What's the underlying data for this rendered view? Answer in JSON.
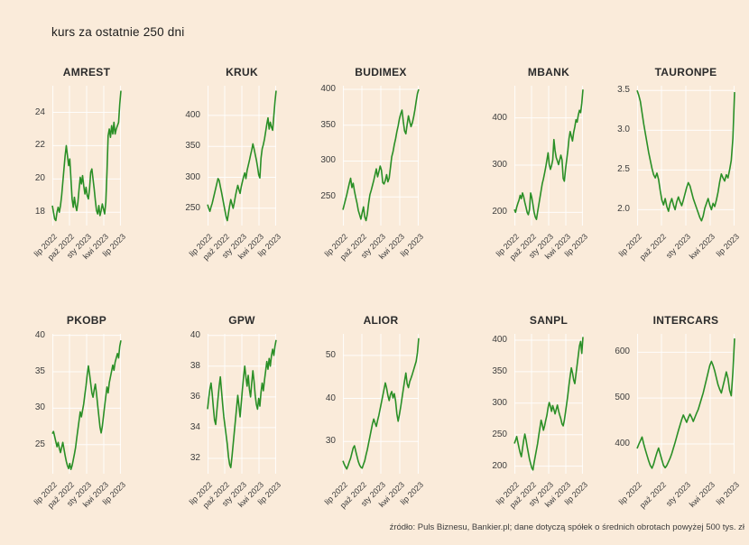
{
  "page": {
    "title": "kurs za ostatnie 250 dni",
    "source_note": "źródło: Puls Biznesu, Bankier.pl; dane dotyczą spółek o średnich obrotach powyżej 500 tys. zł",
    "colors": {
      "background": "#faebda",
      "line": "#2a8f26",
      "grid": "#ffffff"
    }
  },
  "chart_data": [
    {
      "type": "line",
      "title": "AMREST",
      "x_labels": [
        "lip 2022",
        "paź 2022",
        "sty 2023",
        "kwi 2023",
        "lip 2023"
      ],
      "ytick_labels": [
        "18",
        "20",
        "22",
        "24"
      ],
      "ytick_values": [
        18,
        20,
        22,
        24
      ],
      "ylim": [
        17.2,
        25.6
      ],
      "values": [
        18.4,
        18.0,
        17.6,
        17.5,
        18.0,
        18.3,
        18.0,
        18.4,
        19.0,
        19.8,
        20.6,
        21.4,
        22.0,
        21.4,
        20.8,
        21.2,
        20.0,
        18.8,
        18.3,
        18.9,
        18.4,
        18.1,
        18.6,
        19.4,
        20.1,
        19.7,
        20.2,
        19.6,
        19.1,
        19.5,
        19.0,
        18.8,
        19.4,
        20.4,
        20.6,
        20.0,
        19.4,
        18.7,
        18.1,
        17.9,
        18.4,
        17.8,
        18.1,
        18.5,
        18.2,
        17.9,
        18.6,
        20.4,
        22.6,
        23.0,
        22.5,
        23.2,
        22.7,
        23.4,
        22.7,
        23.0,
        23.2,
        23.4,
        24.5,
        25.3
      ]
    },
    {
      "type": "line",
      "title": "KRUK",
      "x_labels": [
        "lip 2022",
        "paź 2022",
        "sty 2023",
        "kwi 2023",
        "lip 2023"
      ],
      "ytick_labels": [
        "250",
        "300",
        "350",
        "400"
      ],
      "ytick_values": [
        250,
        300,
        350,
        400
      ],
      "ylim": [
        222,
        448
      ],
      "values": [
        256,
        250,
        245,
        252,
        258,
        266,
        274,
        282,
        290,
        298,
        295,
        285,
        276,
        266,
        256,
        246,
        236,
        230,
        242,
        254,
        264,
        257,
        250,
        259,
        270,
        279,
        287,
        280,
        274,
        285,
        293,
        301,
        307,
        298,
        311,
        319,
        327,
        336,
        344,
        354,
        346,
        337,
        328,
        317,
        304,
        299,
        331,
        346,
        353,
        362,
        374,
        386,
        396,
        378,
        389,
        381,
        376,
        399,
        422,
        440
      ]
    },
    {
      "type": "line",
      "title": "BUDIMEX",
      "x_labels": [
        "lip 2022",
        "paź 2022",
        "sty 2023",
        "kwi 2023",
        "lip 2023"
      ],
      "ytick_labels": [
        "250",
        "300",
        "350",
        "400"
      ],
      "ytick_values": [
        250,
        300,
        350,
        400
      ],
      "ylim": [
        210,
        405
      ],
      "values": [
        232,
        239,
        246,
        253,
        261,
        269,
        276,
        263,
        269,
        258,
        249,
        241,
        231,
        225,
        219,
        228,
        236,
        222,
        217,
        226,
        241,
        253,
        259,
        266,
        273,
        281,
        289,
        278,
        285,
        293,
        287,
        270,
        268,
        273,
        281,
        271,
        276,
        291,
        306,
        313,
        323,
        331,
        341,
        349,
        359,
        366,
        371,
        355,
        342,
        338,
        351,
        363,
        355,
        348,
        353,
        361,
        371,
        383,
        394,
        400
      ]
    },
    {
      "type": "line",
      "title": "MBANK",
      "x_labels": [
        "lip 2022",
        "paź 2022",
        "sty 2023",
        "kwi 2023",
        "lip 2023"
      ],
      "ytick_labels": [
        "200",
        "300",
        "400"
      ],
      "ytick_values": [
        200,
        300,
        400
      ],
      "ylim": [
        172,
        468
      ],
      "values": [
        206,
        200,
        211,
        219,
        226,
        236,
        229,
        241,
        233,
        221,
        211,
        200,
        195,
        206,
        241,
        231,
        216,
        200,
        190,
        185,
        201,
        216,
        231,
        246,
        261,
        271,
        283,
        296,
        311,
        326,
        301,
        291,
        299,
        311,
        354,
        331,
        316,
        309,
        301,
        311,
        321,
        311,
        272,
        266,
        291,
        311,
        331,
        356,
        371,
        361,
        351,
        369,
        381,
        396,
        391,
        406,
        416,
        411,
        431,
        460
      ]
    },
    {
      "type": "line",
      "title": "TAURONPE",
      "x_labels": [
        "lip 2022",
        "paź 2022",
        "sty 2023",
        "kwi 2023",
        "lip 2023"
      ],
      "ytick_labels": [
        "2.0",
        "2.5",
        "3.0",
        "3.5"
      ],
      "ytick_values": [
        2.0,
        2.5,
        3.0,
        3.5
      ],
      "ylim": [
        1.8,
        3.56
      ],
      "values": [
        3.5,
        3.44,
        3.36,
        3.22,
        3.08,
        2.96,
        2.84,
        2.72,
        2.62,
        2.52,
        2.44,
        2.4,
        2.46,
        2.38,
        2.24,
        2.12,
        2.06,
        2.14,
        2.04,
        1.98,
        2.08,
        2.14,
        2.06,
        2.0,
        2.1,
        2.16,
        2.1,
        2.05,
        2.12,
        2.2,
        2.28,
        2.34,
        2.3,
        2.22,
        2.14,
        2.08,
        2.02,
        1.96,
        1.9,
        1.86,
        1.92,
        2.02,
        2.08,
        2.14,
        2.06,
        2.0,
        2.08,
        2.04,
        2.12,
        2.22,
        2.35,
        2.45,
        2.4,
        2.36,
        2.44,
        2.4,
        2.5,
        2.62,
        2.9,
        3.48
      ]
    },
    {
      "type": "line",
      "title": "PKOBP",
      "x_labels": [
        "lip 2022",
        "paź 2022",
        "sty 2023",
        "kwi 2023",
        "lip 2023"
      ],
      "ytick_labels": [
        "25",
        "30",
        "35",
        "40"
      ],
      "ytick_values": [
        25,
        30,
        35,
        40
      ],
      "ylim": [
        21.0,
        40.2
      ],
      "values": [
        26.5,
        26.8,
        26.1,
        25.4,
        24.7,
        25.3,
        24.5,
        23.9,
        24.6,
        25.3,
        24.4,
        23.5,
        22.7,
        22.1,
        21.7,
        22.4,
        21.6,
        22.1,
        22.9,
        23.7,
        24.6,
        25.9,
        27.1,
        28.3,
        29.5,
        28.8,
        29.7,
        30.6,
        31.9,
        33.1,
        34.6,
        35.8,
        34.7,
        33.4,
        32.1,
        31.5,
        32.5,
        33.3,
        32.0,
        30.4,
        28.9,
        27.4,
        26.6,
        27.5,
        28.9,
        30.3,
        31.6,
        32.9,
        32.1,
        33.5,
        34.3,
        35.1,
        35.9,
        35.2,
        36.3,
        36.9,
        37.5,
        36.9,
        38.5,
        39.3
      ]
    },
    {
      "type": "line",
      "title": "GPW",
      "x_labels": [
        "lip 2022",
        "paź 2022",
        "sty 2023",
        "kwi 2023",
        "lip 2023"
      ],
      "ytick_labels": [
        "32",
        "34",
        "36",
        "38",
        "40"
      ],
      "ytick_values": [
        32,
        34,
        36,
        38,
        40
      ],
      "ylim": [
        31.0,
        40.1
      ],
      "values": [
        35.2,
        35.9,
        36.5,
        36.9,
        36.2,
        35.3,
        34.5,
        34.2,
        35.1,
        35.9,
        36.7,
        37.3,
        36.4,
        35.5,
        34.7,
        34.1,
        33.5,
        32.9,
        32.1,
        31.6,
        31.4,
        32.1,
        32.9,
        33.7,
        34.5,
        35.3,
        36.1,
        35.4,
        34.7,
        35.6,
        36.5,
        37.3,
        38.0,
        37.3,
        36.7,
        37.4,
        36.5,
        36.0,
        36.9,
        37.7,
        37.0,
        36.1,
        35.5,
        35.2,
        35.9,
        35.4,
        36.3,
        36.9,
        36.4,
        37.1,
        37.7,
        38.3,
        37.8,
        38.5,
        38.0,
        38.7,
        39.1,
        38.7,
        39.3,
        39.7
      ]
    },
    {
      "type": "line",
      "title": "ALIOR",
      "x_labels": [
        "lip 2022",
        "paź 2022",
        "sty 2023",
        "kwi 2023",
        "lip 2023"
      ],
      "ytick_labels": [
        "30",
        "40",
        "50"
      ],
      "ytick_values": [
        30,
        40,
        50
      ],
      "ylim": [
        22.5,
        55.0
      ],
      "values": [
        25.5,
        24.7,
        24.1,
        23.6,
        24.4,
        25.3,
        26.1,
        27.3,
        28.5,
        29.0,
        27.7,
        26.5,
        25.3,
        24.5,
        24.0,
        23.8,
        24.7,
        25.5,
        26.9,
        28.1,
        29.6,
        31.1,
        32.6,
        34.1,
        35.2,
        34.3,
        33.5,
        34.9,
        36.1,
        37.6,
        39.1,
        40.6,
        42.1,
        43.6,
        42.4,
        40.7,
        39.5,
        40.9,
        41.6,
        40.1,
        41.1,
        39.4,
        36.4,
        34.7,
        36.3,
        38.1,
        40.1,
        42.1,
        44.1,
        45.9,
        43.4,
        42.5,
        43.9,
        44.7,
        45.6,
        46.6,
        47.6,
        48.6,
        50.6,
        54.0
      ]
    },
    {
      "type": "line",
      "title": "SANPL",
      "x_labels": [
        "lip 2022",
        "paź 2022",
        "sty 2023",
        "kwi 2023",
        "lip 2023"
      ],
      "ytick_labels": [
        "200",
        "250",
        "300",
        "350",
        "400"
      ],
      "ytick_values": [
        200,
        250,
        300,
        350,
        400
      ],
      "ylim": [
        188,
        410
      ],
      "values": [
        236,
        241,
        247,
        238,
        229,
        221,
        215,
        228,
        241,
        251,
        242,
        231,
        221,
        211,
        204,
        197,
        194,
        206,
        216,
        226,
        236,
        249,
        261,
        273,
        266,
        257,
        264,
        273,
        281,
        293,
        301,
        295,
        287,
        296,
        290,
        283,
        290,
        297,
        288,
        281,
        275,
        267,
        264,
        273,
        286,
        299,
        313,
        329,
        343,
        356,
        348,
        337,
        331,
        346,
        361,
        376,
        391,
        398,
        379,
        405
      ]
    },
    {
      "type": "line",
      "title": "INTERCARS",
      "x_labels": [
        "lip 2022",
        "paź 2022",
        "sty 2023",
        "kwi 2023",
        "lip 2023"
      ],
      "ytick_labels": [
        "400",
        "500",
        "600"
      ],
      "ytick_values": [
        400,
        500,
        600
      ],
      "ylim": [
        335,
        640
      ],
      "values": [
        390,
        399,
        407,
        415,
        400,
        387,
        375,
        363,
        353,
        347,
        356,
        369,
        381,
        391,
        378,
        365,
        353,
        348,
        353,
        361,
        369,
        379,
        391,
        403,
        416,
        429,
        441,
        453,
        463,
        455,
        447,
        457,
        465,
        458,
        449,
        458,
        467,
        475,
        487,
        499,
        511,
        526,
        541,
        556,
        571,
        580,
        571,
        559,
        544,
        529,
        519,
        511,
        526,
        541,
        557,
        543,
        517,
        505,
        557,
        630
      ]
    }
  ]
}
